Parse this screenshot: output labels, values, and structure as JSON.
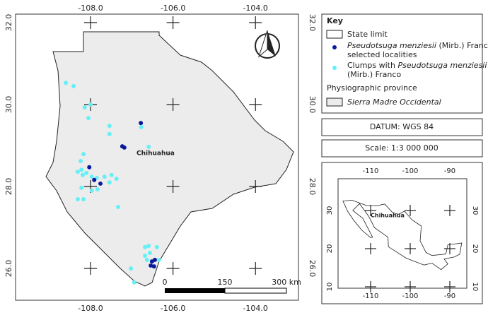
{
  "map": {
    "x_ticks": [
      {
        "value": -108,
        "label": "-108.0"
      },
      {
        "value": -106,
        "label": "-106.0"
      },
      {
        "value": -104,
        "label": "-104.0"
      }
    ],
    "y_ticks": [
      {
        "value": 32,
        "label": "32.0"
      },
      {
        "value": 30,
        "label": "30.0"
      },
      {
        "value": 28,
        "label": "28.0"
      },
      {
        "value": 26,
        "label": "26.0"
      }
    ],
    "city_label": "Chihuahua",
    "selected_localities": [
      [
        -106.78,
        29.55
      ],
      [
        -107.23,
        28.98
      ],
      [
        -107.18,
        28.95
      ],
      [
        -108.03,
        28.47
      ],
      [
        -107.91,
        28.16
      ],
      [
        -107.76,
        28.07
      ],
      [
        -106.44,
        26.21
      ],
      [
        -106.54,
        26.07
      ],
      [
        -106.46,
        26.05
      ],
      [
        -106.51,
        26.17
      ]
    ],
    "clumps": [
      [
        -108.6,
        30.53
      ],
      [
        -108.41,
        30.45
      ],
      [
        -108.14,
        29.93
      ],
      [
        -108.0,
        30.0
      ],
      [
        -108.05,
        29.67
      ],
      [
        -107.54,
        29.48
      ],
      [
        -107.54,
        29.28
      ],
      [
        -106.77,
        29.45
      ],
      [
        -106.59,
        28.97
      ],
      [
        -108.17,
        28.79
      ],
      [
        -108.24,
        28.62
      ],
      [
        -108.22,
        28.41
      ],
      [
        -108.31,
        28.36
      ],
      [
        -108.19,
        28.28
      ],
      [
        -108.1,
        28.33
      ],
      [
        -107.97,
        28.24
      ],
      [
        -107.85,
        28.21
      ],
      [
        -107.66,
        28.24
      ],
      [
        -107.49,
        28.28
      ],
      [
        -107.54,
        28.1
      ],
      [
        -107.37,
        28.19
      ],
      [
        -107.83,
        27.93
      ],
      [
        -108.31,
        27.69
      ],
      [
        -108.17,
        27.69
      ],
      [
        -107.97,
        27.9
      ],
      [
        -107.33,
        27.5
      ],
      [
        -106.59,
        26.55
      ],
      [
        -106.68,
        26.52
      ],
      [
        -106.39,
        26.52
      ],
      [
        -106.56,
        26.38
      ],
      [
        -106.68,
        26.31
      ],
      [
        -106.34,
        26.21
      ],
      [
        -106.63,
        26.21
      ],
      [
        -107.02,
        26.0
      ],
      [
        -106.94,
        25.66
      ],
      [
        -108.22,
        27.97
      ]
    ],
    "scale_bar": [
      "0",
      "150",
      "300 km"
    ]
  },
  "key": {
    "title": "Key",
    "state_limit": "State limit",
    "selected": {
      "species": "Pseudotsuga menziesii",
      "author": " (Mirb.) Franco",
      "line2": "selected localities"
    },
    "clumps": {
      "prefix": "Clumps with ",
      "species": "Pseudotsuga menziesii",
      "line2": "(Mirb.) Franco"
    },
    "province_heading": "Physiographic province",
    "province": "Sierra Madre Occidental"
  },
  "datum": "DATUM: WGS 84",
  "scale": "Scale: 1:3 000 000",
  "inset": {
    "x_ticks": [
      -110,
      -100,
      -90
    ],
    "y_ticks": [
      30,
      20,
      10
    ],
    "city_label": "Chihuahua"
  }
}
